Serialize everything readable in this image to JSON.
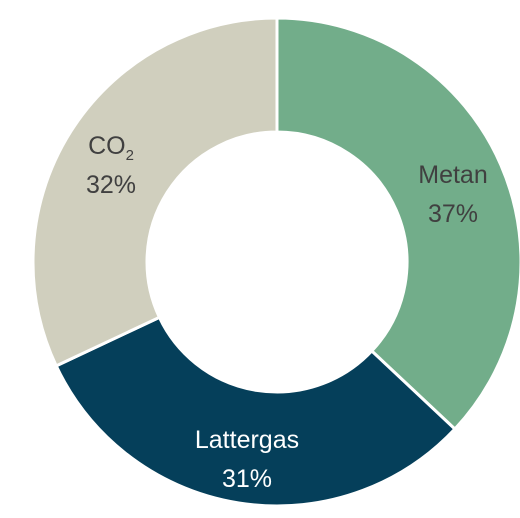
{
  "chart_data": {
    "type": "pie",
    "variant": "donut",
    "categories": [
      "Metan",
      "Lattergas",
      "CO2"
    ],
    "values": [
      37,
      31,
      32
    ],
    "value_labels": [
      "37%",
      "31%",
      "32%"
    ],
    "colors": [
      "#72ad8a",
      "#053f5a",
      "#d0cfbe"
    ],
    "title": "",
    "legend": "none"
  },
  "labels": {
    "metan": {
      "name": "Metan",
      "pct": "37%"
    },
    "lattergas": {
      "name": "Lattergas",
      "pct": "31%"
    },
    "co2": {
      "name_main": "CO",
      "name_sub": "2",
      "pct": "32%"
    }
  }
}
